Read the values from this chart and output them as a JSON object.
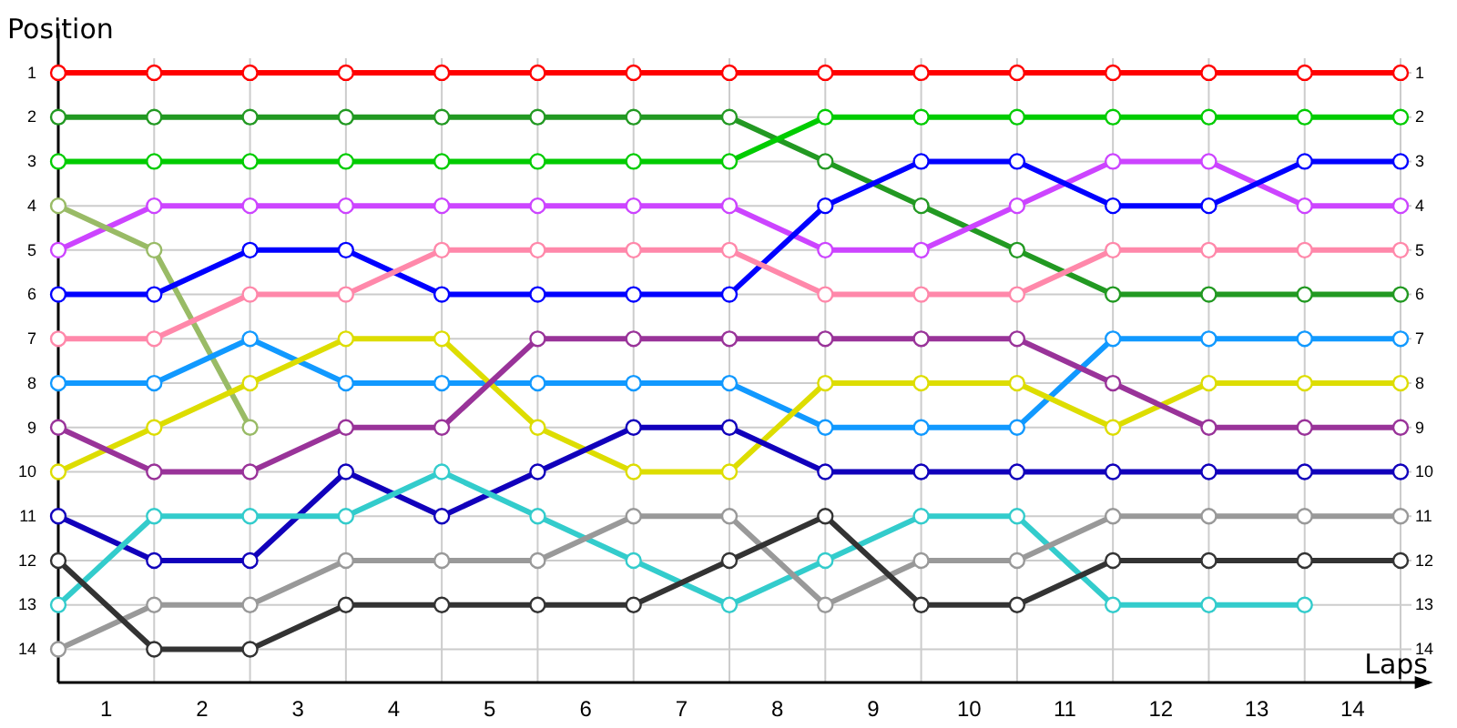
{
  "chart_data": {
    "type": "line",
    "xlabel": "Laps",
    "ylabel": "Position",
    "x": [
      0,
      1,
      2,
      3,
      4,
      5,
      6,
      7,
      8,
      9,
      10,
      11,
      12,
      13,
      14
    ],
    "xlim": [
      0,
      14.3
    ],
    "xticks": [
      {
        "value": 0,
        "label": null
      },
      {
        "value": 1,
        "label": null
      },
      {
        "value": 2,
        "label": null
      },
      {
        "value": 3,
        "label": null
      },
      {
        "value": 4,
        "label": null
      },
      {
        "value": 5,
        "label": null
      },
      {
        "value": 6,
        "label": null
      },
      {
        "value": 7,
        "label": null
      },
      {
        "value": 8,
        "label": null
      },
      {
        "value": 9,
        "label": null
      },
      {
        "value": 10,
        "label": null
      },
      {
        "value": 11,
        "label": null
      },
      {
        "value": 12,
        "label": null
      },
      {
        "value": 13,
        "label": null
      },
      {
        "value": 14,
        "label": null
      },
      {
        "value": 0.5,
        "label": "1"
      },
      {
        "value": 1.5,
        "label": "2"
      },
      {
        "value": 2.5,
        "label": "3"
      },
      {
        "value": 3.5,
        "label": "4"
      },
      {
        "value": 4.5,
        "label": "5"
      },
      {
        "value": 5.5,
        "label": "6"
      },
      {
        "value": 6.5,
        "label": "7"
      },
      {
        "value": 7.5,
        "label": "8"
      },
      {
        "value": 8.5,
        "label": "9"
      },
      {
        "value": 9.5,
        "label": "10"
      },
      {
        "value": 10.5,
        "label": "11"
      },
      {
        "value": 11.5,
        "label": "12"
      },
      {
        "value": 12.5,
        "label": "13"
      },
      {
        "value": 13.5,
        "label": "14"
      }
    ],
    "ylim": [
      14.75,
      0
    ],
    "yticks": [
      1,
      2,
      3,
      4,
      5,
      6,
      7,
      8,
      9,
      10,
      11,
      12,
      13,
      14
    ],
    "y2lim": [
      14.75,
      0
    ],
    "y2ticks": [
      1,
      2,
      3,
      4,
      5,
      6,
      7,
      8,
      9,
      10,
      11,
      12,
      13,
      14
    ],
    "grid": true,
    "marker": "circle",
    "line_style": "solid",
    "series": [
      {
        "color": "#ff0000",
        "values": [
          1,
          1,
          1,
          1,
          1,
          1,
          1,
          1,
          1,
          1,
          1,
          1,
          1,
          1,
          1
        ]
      },
      {
        "color": "#229922",
        "values": [
          2,
          2,
          2,
          2,
          2,
          2,
          2,
          2,
          3,
          4,
          5,
          6,
          6,
          6,
          6
        ]
      },
      {
        "color": "#00cc00",
        "values": [
          3,
          3,
          3,
          3,
          3,
          3,
          3,
          3,
          2,
          2,
          2,
          2,
          2,
          2,
          2
        ]
      },
      {
        "color": "#cc44ff",
        "values": [
          5,
          4,
          4,
          4,
          4,
          4,
          4,
          4,
          5,
          5,
          4,
          3,
          3,
          4,
          4
        ]
      },
      {
        "color": "#99bb66",
        "values": [
          4,
          5,
          9,
          null,
          null,
          null,
          null,
          null,
          null,
          null,
          null,
          null,
          null,
          null,
          null
        ]
      },
      {
        "color": "#0000ff",
        "values": [
          6,
          6,
          5,
          5,
          6,
          6,
          6,
          6,
          4,
          3,
          3,
          4,
          4,
          3,
          3
        ]
      },
      {
        "color": "#ff88aa",
        "values": [
          7,
          7,
          6,
          6,
          5,
          5,
          5,
          5,
          6,
          6,
          6,
          5,
          5,
          5,
          5
        ]
      },
      {
        "color": "#1199ff",
        "values": [
          8,
          8,
          7,
          8,
          8,
          8,
          8,
          8,
          9,
          9,
          9,
          7,
          7,
          7,
          7
        ]
      },
      {
        "color": "#dddd00",
        "values": [
          10,
          9,
          8,
          7,
          7,
          9,
          10,
          10,
          8,
          8,
          8,
          9,
          8,
          8,
          8
        ]
      },
      {
        "color": "#993399",
        "values": [
          9,
          10,
          10,
          9,
          9,
          7,
          7,
          7,
          7,
          7,
          7,
          8,
          9,
          9,
          9
        ]
      },
      {
        "color": "#1100bb",
        "values": [
          11,
          12,
          12,
          10,
          11,
          10,
          9,
          9,
          10,
          10,
          10,
          10,
          10,
          10,
          10
        ]
      },
      {
        "color": "#33cccc",
        "values": [
          13,
          11,
          11,
          11,
          10,
          11,
          12,
          13,
          12,
          11,
          11,
          13,
          13,
          13,
          null
        ]
      },
      {
        "color": "#999999",
        "values": [
          14,
          13,
          13,
          12,
          12,
          12,
          11,
          11,
          13,
          12,
          12,
          11,
          11,
          11,
          11
        ]
      },
      {
        "color": "#333333",
        "values": [
          12,
          14,
          14,
          13,
          13,
          13,
          13,
          12,
          11,
          13,
          13,
          12,
          12,
          12,
          12
        ]
      }
    ]
  }
}
